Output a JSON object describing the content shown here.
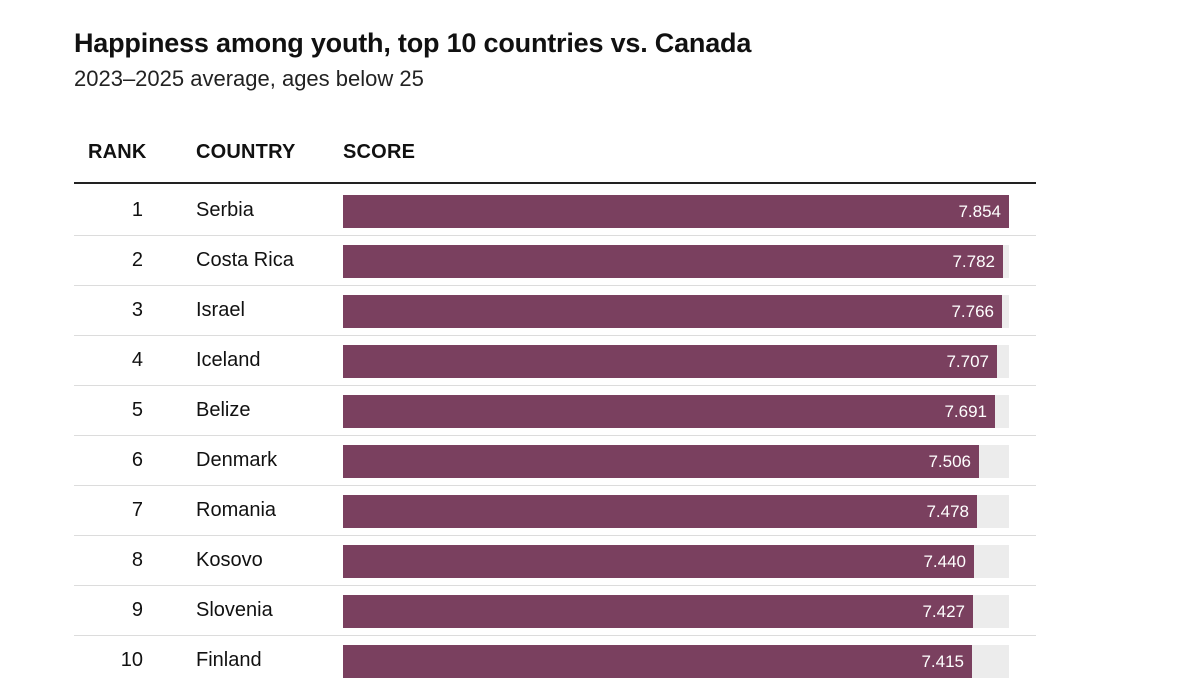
{
  "header": {
    "title": "Happiness among youth, top 10 countries vs. Canada",
    "subtitle": "2023–2025 average, ages below 25"
  },
  "table": {
    "columns": {
      "rank": "RANK",
      "country": "COUNTRY",
      "score": "SCORE"
    }
  },
  "colors": {
    "bar": "#7a405f",
    "track": "#ececec"
  },
  "chart_data": {
    "type": "bar",
    "orientation": "horizontal",
    "title": "Happiness among youth, top 10 countries vs. Canada",
    "subtitle": "2023–2025 average, ages below 25",
    "xlabel": "SCORE",
    "ylabel": "COUNTRY",
    "xlim": [
      0,
      7.854
    ],
    "ranks": [
      "1",
      "2",
      "3",
      "4",
      "5",
      "6",
      "7",
      "8",
      "9",
      "10"
    ],
    "categories": [
      "Serbia",
      "Costa Rica",
      "Israel",
      "Iceland",
      "Belize",
      "Denmark",
      "Romania",
      "Kosovo",
      "Slovenia",
      "Finland"
    ],
    "values": [
      7.854,
      7.782,
      7.766,
      7.707,
      7.691,
      7.506,
      7.478,
      7.44,
      7.427,
      7.415
    ],
    "labels": [
      "7.854",
      "7.782",
      "7.766",
      "7.707",
      "7.691",
      "7.506",
      "7.478",
      "7.440",
      "7.427",
      "7.415"
    ]
  }
}
